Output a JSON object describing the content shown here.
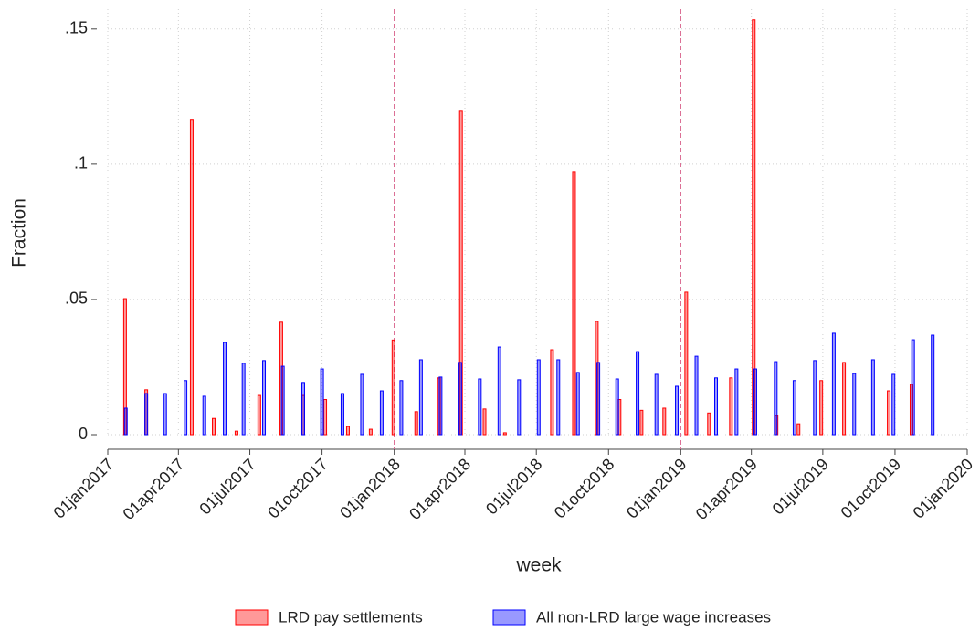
{
  "chart_data": {
    "type": "bar",
    "x_label": "week",
    "y_label": "Fraction",
    "xlim": [
      "2017-01-01",
      "2020-01-01"
    ],
    "xticks": [
      {
        "value": "2017-01-01",
        "label": "01jan2017"
      },
      {
        "value": "2017-04-01",
        "label": "01apr2017"
      },
      {
        "value": "2017-07-01",
        "label": "01jul2017"
      },
      {
        "value": "2017-10-01",
        "label": "01oct2017"
      },
      {
        "value": "2018-01-01",
        "label": "01jan2018"
      },
      {
        "value": "2018-04-01",
        "label": "01apr2018"
      },
      {
        "value": "2018-07-01",
        "label": "01jul2018"
      },
      {
        "value": "2018-10-01",
        "label": "01oct2018"
      },
      {
        "value": "2019-01-01",
        "label": "01jan2019"
      },
      {
        "value": "2019-04-01",
        "label": "01apr2019"
      },
      {
        "value": "2019-07-01",
        "label": "01jul2019"
      },
      {
        "value": "2019-10-01",
        "label": "01oct2019"
      },
      {
        "value": "2020-01-01",
        "label": "01jan2020"
      }
    ],
    "ylim": [
      0,
      0.155
    ],
    "yticks": [
      0,
      {
        "value": 0.05,
        "label": ".05"
      },
      {
        "value": 0.1,
        "label": ".1"
      },
      {
        "value": 0.15,
        "label": ".15"
      }
    ],
    "grid": true,
    "vlines": [
      "2018-01-01",
      "2019-01-01"
    ],
    "vline_color": "#d9668f",
    "legend": "bottom",
    "series": [
      {
        "name": "LRD pay settlements",
        "color": "#ff0000",
        "x": [
          "2017-01-23",
          "2017-02-19",
          "2017-04-18",
          "2017-05-16",
          "2017-06-14",
          "2017-07-13",
          "2017-08-10",
          "2017-09-07",
          "2017-10-05",
          "2017-11-03",
          "2017-12-02",
          "2017-12-31",
          "2018-01-29",
          "2018-02-27",
          "2018-03-27",
          "2018-04-26",
          "2018-05-22",
          "2018-07-21",
          "2018-08-18",
          "2018-09-16",
          "2018-10-15",
          "2018-11-12",
          "2018-12-11",
          "2019-01-08",
          "2019-02-06",
          "2019-03-06",
          "2019-04-04",
          "2019-05-03",
          "2019-05-31",
          "2019-06-29",
          "2019-07-28",
          "2019-09-23",
          "2019-10-22"
        ],
        "values": [
          0.0503,
          0.0166,
          0.1166,
          0.006,
          0.0013,
          0.0145,
          0.0416,
          0.0145,
          0.013,
          0.003,
          0.002,
          0.035,
          0.0085,
          0.021,
          0.1196,
          0.0095,
          0.0007,
          0.0314,
          0.0973,
          0.0419,
          0.013,
          0.009,
          0.0098,
          0.0527,
          0.008,
          0.021,
          0.1534,
          0.007,
          0.004,
          0.02,
          0.0267,
          0.0162,
          0.0186
        ]
      },
      {
        "name": "All non-LRD large wage increases",
        "color": "#0000ff",
        "x": [
          "2017-01-24",
          "2017-02-19",
          "2017-03-15",
          "2017-04-10",
          "2017-05-04",
          "2017-05-30",
          "2017-06-23",
          "2017-07-19",
          "2017-08-12",
          "2017-09-07",
          "2017-10-01",
          "2017-10-27",
          "2017-11-21",
          "2017-12-16",
          "2018-01-10",
          "2018-02-04",
          "2018-03-01",
          "2018-03-26",
          "2018-04-20",
          "2018-05-15",
          "2018-06-09",
          "2018-07-04",
          "2018-07-29",
          "2018-08-23",
          "2018-09-18",
          "2018-10-12",
          "2018-11-07",
          "2018-12-01",
          "2018-12-27",
          "2019-01-21",
          "2019-02-15",
          "2019-03-13",
          "2019-04-06",
          "2019-05-02",
          "2019-05-26",
          "2019-06-21",
          "2019-07-15",
          "2019-08-10",
          "2019-09-03",
          "2019-09-29",
          "2019-10-24",
          "2019-11-18"
        ],
        "values": [
          0.0098,
          0.0152,
          0.0152,
          0.02,
          0.0142,
          0.0341,
          0.0264,
          0.0274,
          0.0253,
          0.0193,
          0.0243,
          0.0152,
          0.0223,
          0.0162,
          0.02,
          0.0277,
          0.0213,
          0.0267,
          0.0206,
          0.0324,
          0.0203,
          0.0277,
          0.0277,
          0.023,
          0.0267,
          0.0206,
          0.0307,
          0.0223,
          0.0179,
          0.029,
          0.021,
          0.0243,
          0.0243,
          0.027,
          0.02,
          0.0274,
          0.0375,
          0.0226,
          0.0277,
          0.0223,
          0.0351,
          0.0368
        ]
      }
    ]
  }
}
